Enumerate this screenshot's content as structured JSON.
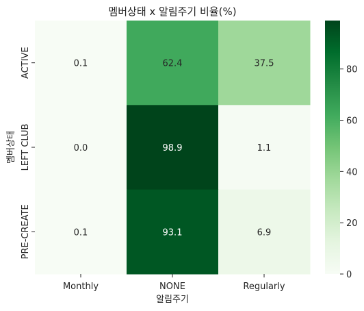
{
  "chart_data": {
    "type": "heatmap",
    "title": "멤버상태 x 알림주기 비율(%)",
    "xlabel": "알림주기",
    "ylabel": "멤버상태",
    "x_categories": [
      "Monthly",
      "NONE",
      "Regularly"
    ],
    "y_categories": [
      "ACTIVE",
      "LEFT CLUB",
      "PRE-CREATE"
    ],
    "values": [
      [
        0.1,
        62.4,
        37.5
      ],
      [
        0.0,
        98.9,
        1.1
      ],
      [
        0.1,
        93.1,
        6.9
      ]
    ],
    "value_labels": [
      [
        "0.1",
        "62.4",
        "37.5"
      ],
      [
        "0.0",
        "98.9",
        "1.1"
      ],
      [
        "0.1",
        "93.1",
        "6.9"
      ]
    ],
    "colormap": "Greens",
    "color_range": [
      0,
      98.9
    ],
    "colorbar_ticks": [
      0,
      20,
      40,
      60,
      80
    ],
    "colorbar_tick_labels": [
      "0",
      "20",
      "40",
      "60",
      "80"
    ]
  }
}
